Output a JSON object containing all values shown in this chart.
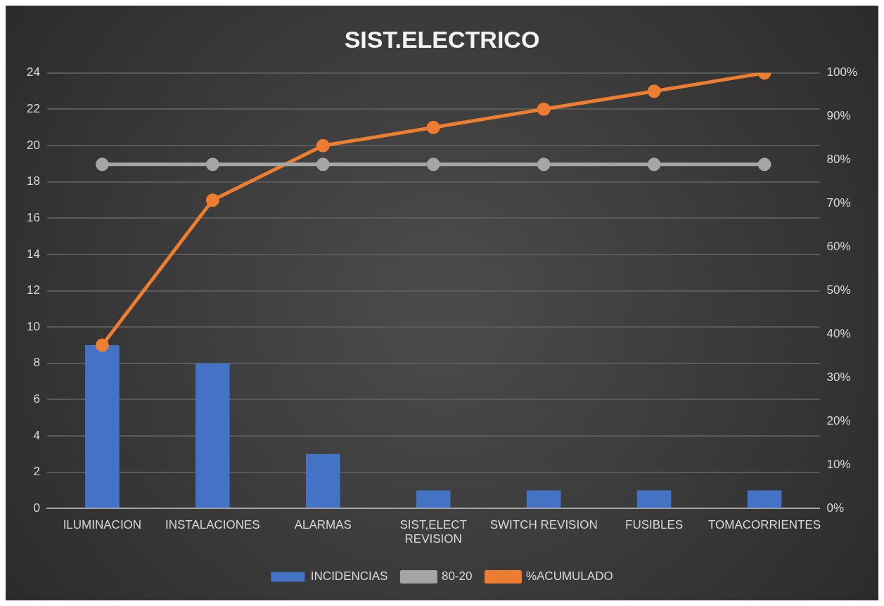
{
  "chart_data": {
    "type": "bar",
    "title": "SIST.ELECTRICO",
    "categories": [
      "ILUMINACION",
      "INSTALACIONES",
      "ALARMAS",
      "SIST,ELECT REVISION",
      "SWITCH REVISION",
      "FUSIBLES",
      "TOMACORRIENTES"
    ],
    "series": [
      {
        "name": "INCIDENCIAS",
        "color": "#4472c4",
        "values": [
          9,
          8,
          3,
          1,
          1,
          1,
          1
        ]
      },
      {
        "name": "80-20",
        "type": "line",
        "axis": "y2",
        "color": "#a5a5a5",
        "values": [
          79,
          79,
          79,
          79,
          79,
          79,
          79
        ]
      },
      {
        "name": "%ACUMULADO",
        "type": "line",
        "axis": "y2",
        "color": "#ed7d31",
        "values": [
          37.5,
          70.8,
          83.3,
          87.5,
          91.7,
          95.8,
          100
        ]
      }
    ],
    "ylim": [
      0,
      24
    ],
    "yticks": [
      0,
      2,
      4,
      6,
      8,
      10,
      12,
      14,
      16,
      18,
      20,
      22,
      24
    ],
    "y2lim": [
      0,
      100
    ],
    "y2ticks": [
      {
        "value": 0,
        "label": "0%"
      },
      {
        "value": 10,
        "label": "10%"
      },
      {
        "value": 20,
        "label": "20%"
      },
      {
        "value": 30,
        "label": "30%"
      },
      {
        "value": 40,
        "label": "40%"
      },
      {
        "value": 50,
        "label": "50%"
      },
      {
        "value": 60,
        "label": "60%"
      },
      {
        "value": 70,
        "label": "70%"
      },
      {
        "value": 80,
        "label": "80%"
      },
      {
        "value": 90,
        "label": "90%"
      },
      {
        "value": 100,
        "label": "100%"
      }
    ],
    "grid": "y",
    "legend": "bottom",
    "marker": "circle",
    "line_style": "solid"
  }
}
